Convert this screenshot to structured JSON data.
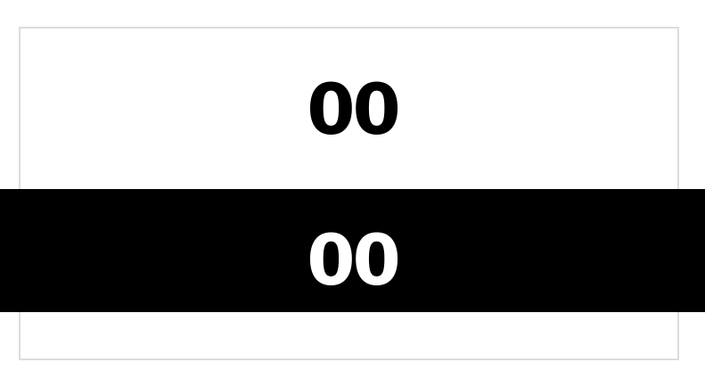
{
  "counter": {
    "top_value": "00",
    "bottom_value": "00"
  },
  "colors": {
    "frame_border": "#dcdcdc",
    "band_background": "#000000",
    "top_text": "#000000",
    "bottom_text": "#ffffff"
  }
}
